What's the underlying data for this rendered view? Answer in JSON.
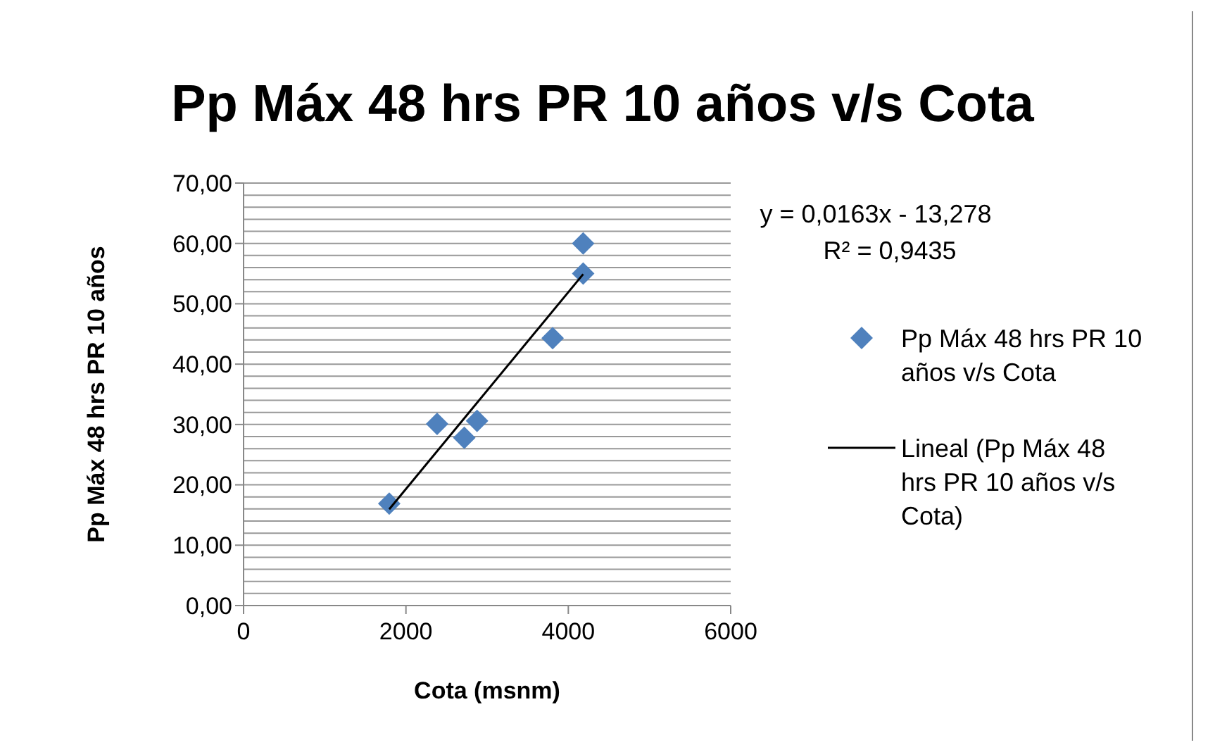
{
  "chart_data": {
    "type": "scatter",
    "title": "Pp Máx 48 hrs PR 10 años v/s Cota",
    "xlabel": "Cota (msnm)",
    "ylabel": "Pp Máx 48 hrs PR 10 años",
    "annotations": [
      "y = 0,0163x - 13,278",
      "R² = 0,9435"
    ],
    "series": [
      {
        "name": "Pp Máx 48 hrs PR 10 años v/s Cota",
        "color": "#4f81bd",
        "x": [
          1794,
          2384,
          2719,
          2876,
          3807,
          4183,
          4183
        ],
        "values": [
          16.9,
          30.1,
          27.8,
          30.6,
          44.3,
          55.0,
          60.0
        ],
        "marker": "diamond"
      },
      {
        "name": "Lineal (Pp Máx 48 hrs PR 10 años v/s Cota)",
        "type": "line",
        "color": "#000000",
        "x": [
          1794,
          4183
        ],
        "values": [
          15.96,
          54.91
        ],
        "marker": "none"
      }
    ],
    "xlim": [
      0,
      6000
    ],
    "xticks": [
      0,
      2000,
      4000,
      6000
    ],
    "ylim": [
      0,
      70
    ],
    "yticks": [
      {
        "value": 0,
        "label": "0,00"
      },
      {
        "value": 2,
        "label": null
      },
      {
        "value": 4,
        "label": null
      },
      {
        "value": 6,
        "label": null
      },
      {
        "value": 8,
        "label": null
      },
      {
        "value": 10,
        "label": "10,00"
      },
      {
        "value": 12,
        "label": null
      },
      {
        "value": 14,
        "label": null
      },
      {
        "value": 16,
        "label": null
      },
      {
        "value": 18,
        "label": null
      },
      {
        "value": 20,
        "label": "20,00"
      },
      {
        "value": 22,
        "label": null
      },
      {
        "value": 24,
        "label": null
      },
      {
        "value": 26,
        "label": null
      },
      {
        "value": 28,
        "label": null
      },
      {
        "value": 30,
        "label": "30,00"
      },
      {
        "value": 32,
        "label": null
      },
      {
        "value": 34,
        "label": null
      },
      {
        "value": 36,
        "label": null
      },
      {
        "value": 38,
        "label": null
      },
      {
        "value": 40,
        "label": "40,00"
      },
      {
        "value": 42,
        "label": null
      },
      {
        "value": 44,
        "label": null
      },
      {
        "value": 46,
        "label": null
      },
      {
        "value": 48,
        "label": null
      },
      {
        "value": 50,
        "label": "50,00"
      },
      {
        "value": 52,
        "label": null
      },
      {
        "value": 54,
        "label": null
      },
      {
        "value": 56,
        "label": null
      },
      {
        "value": 58,
        "label": null
      },
      {
        "value": 60,
        "label": "60,00"
      },
      {
        "value": 62,
        "label": null
      },
      {
        "value": 64,
        "label": null
      },
      {
        "value": 66,
        "label": null
      },
      {
        "value": 68,
        "label": null
      },
      {
        "value": 70,
        "label": "70,00"
      }
    ],
    "grid": "y",
    "legend": "right"
  }
}
